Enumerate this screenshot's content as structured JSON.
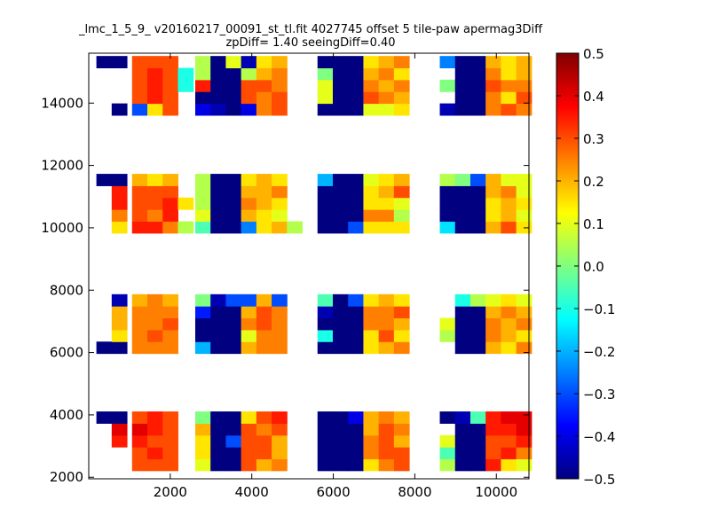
{
  "chart_data": {
    "type": "heatmap",
    "title": "_lmc_1_5_9_ v20160217_00091_st_tl.fit 4027745 offset 5 tile-paw apermag3Diff",
    "subtitle": "zpDiff= 1.40 seeingDiff=0.40",
    "xlabel": "",
    "ylabel": "",
    "xlim": [
      0,
      10800
    ],
    "ylim": [
      1950,
      15600
    ],
    "cell_width": 375,
    "cell_height": 380,
    "x_ticks": [
      2000,
      4000,
      6000,
      8000,
      10000
    ],
    "x_tick_labels": [
      "2000",
      "4000",
      "6000",
      "8000",
      "10000"
    ],
    "y_ticks": [
      2000,
      4000,
      6000,
      8000,
      10000,
      12000,
      14000
    ],
    "y_tick_labels": [
      "2000",
      "4000",
      "6000",
      "8000",
      "10000",
      "12000",
      "14000"
    ],
    "colorbar": {
      "colormap": "jet",
      "vmin": -0.5,
      "vmax": 0.5,
      "ticks": [
        -0.5,
        -0.4,
        -0.3,
        -0.2,
        -0.1,
        0.0,
        0.1,
        0.2,
        0.3,
        0.4,
        0.5
      ],
      "tick_labels": [
        "−0.5",
        "−0.4",
        "−0.3",
        "−0.2",
        "−0.1",
        "0.0",
        "0.1",
        "0.2",
        "0.3",
        "0.4",
        "0.5"
      ]
    },
    "x_centers": [
      375,
      750,
      1250,
      1625,
      2000,
      2375,
      2800,
      3175,
      3550,
      3925,
      4300,
      4675,
      5050,
      5800,
      6175,
      6550,
      6925,
      7300,
      7675,
      8050,
      8800,
      9175,
      9550,
      9925,
      10300,
      10675
    ],
    "y_centers": [
      2400,
      2780,
      3160,
      3540,
      3920,
      6160,
      6540,
      6920,
      7300,
      7680,
      10020,
      10400,
      10780,
      11160,
      11540,
      13800,
      14180,
      14560,
      14940,
      15320
    ],
    "values": [
      [
        null,
        null,
        0.3,
        0.3,
        0.3,
        null,
        0.1,
        -0.5,
        -0.5,
        0.3,
        0.2,
        0.25,
        null,
        -0.5,
        -0.5,
        -0.5,
        0.15,
        0.25,
        0.3,
        null,
        0.05,
        -0.5,
        -0.5,
        0.35,
        0.15,
        0.1
      ],
      [
        null,
        null,
        0.3,
        0.35,
        0.3,
        null,
        0.15,
        -0.5,
        -0.5,
        0.3,
        0.3,
        0.2,
        null,
        -0.5,
        -0.5,
        -0.5,
        0.25,
        0.3,
        0.3,
        null,
        -0.05,
        -0.5,
        -0.5,
        0.3,
        0.35,
        0.25
      ],
      [
        null,
        0.35,
        0.35,
        0.3,
        0.3,
        null,
        0.15,
        -0.5,
        -0.3,
        0.3,
        0.3,
        0.2,
        null,
        -0.5,
        -0.5,
        -0.5,
        0.25,
        0.3,
        0.2,
        null,
        0.1,
        -0.5,
        -0.5,
        0.3,
        0.3,
        0.35
      ],
      [
        null,
        0.4,
        0.4,
        0.35,
        0.3,
        null,
        0.2,
        -0.5,
        -0.5,
        0.3,
        0.25,
        0.3,
        null,
        -0.5,
        -0.5,
        -0.5,
        0.2,
        0.3,
        0.25,
        null,
        null,
        -0.5,
        -0.5,
        0.35,
        0.35,
        0.4
      ],
      [
        -0.5,
        -0.5,
        0.3,
        0.35,
        0.3,
        null,
        0.0,
        -0.5,
        -0.5,
        0.15,
        0.3,
        0.35,
        null,
        -0.5,
        -0.5,
        -0.4,
        0.2,
        0.25,
        0.2,
        null,
        -0.5,
        -0.45,
        -0.05,
        0.35,
        0.4,
        0.4
      ],
      [
        -0.5,
        -0.5,
        0.25,
        0.25,
        0.25,
        null,
        -0.2,
        -0.5,
        -0.5,
        0.2,
        0.25,
        0.25,
        null,
        -0.5,
        -0.5,
        -0.5,
        0.15,
        0.2,
        0.25,
        null,
        null,
        -0.5,
        -0.5,
        0.2,
        0.15,
        0.25
      ],
      [
        null,
        0.15,
        0.25,
        0.3,
        0.25,
        null,
        -0.5,
        -0.5,
        -0.5,
        0.1,
        0.25,
        0.25,
        null,
        -0.1,
        -0.5,
        -0.5,
        0.15,
        0.3,
        0.15,
        null,
        0.05,
        -0.5,
        -0.5,
        0.25,
        0.2,
        0.15
      ],
      [
        null,
        0.2,
        0.25,
        0.25,
        0.3,
        null,
        -0.5,
        -0.5,
        -0.5,
        0.25,
        0.3,
        0.25,
        null,
        -0.5,
        -0.5,
        -0.5,
        0.25,
        0.25,
        0.2,
        null,
        0.1,
        -0.5,
        -0.5,
        0.25,
        0.2,
        0.25
      ],
      [
        null,
        0.2,
        0.25,
        0.25,
        0.25,
        null,
        -0.35,
        -0.5,
        -0.5,
        0.2,
        0.3,
        0.25,
        null,
        -0.45,
        -0.5,
        -0.5,
        0.25,
        0.25,
        0.3,
        null,
        null,
        -0.5,
        -0.5,
        0.2,
        0.25,
        0.2
      ],
      [
        null,
        -0.45,
        0.2,
        0.25,
        0.2,
        null,
        0.0,
        -0.45,
        -0.3,
        -0.3,
        0.2,
        -0.3,
        null,
        -0.05,
        -0.5,
        -0.3,
        0.15,
        0.2,
        0.15,
        null,
        null,
        -0.1,
        0.05,
        0.1,
        0.15,
        0.1
      ],
      [
        null,
        0.15,
        0.35,
        0.35,
        0.25,
        0.05,
        -0.05,
        -0.5,
        -0.5,
        -0.25,
        0.15,
        0.2,
        0.05,
        -0.5,
        -0.5,
        -0.3,
        0.15,
        0.15,
        0.15,
        null,
        -0.15,
        -0.5,
        -0.5,
        0.2,
        0.3,
        0.15
      ],
      [
        null,
        0.25,
        0.3,
        0.25,
        0.35,
        null,
        0.1,
        -0.5,
        -0.5,
        0.2,
        0.15,
        0.1,
        null,
        -0.5,
        -0.5,
        -0.5,
        0.25,
        0.25,
        0.05,
        null,
        -0.5,
        -0.5,
        -0.5,
        0.15,
        0.2,
        0.1
      ],
      [
        null,
        0.35,
        0.3,
        0.3,
        0.35,
        0.15,
        0.05,
        -0.5,
        -0.5,
        0.25,
        0.2,
        0.15,
        null,
        -0.5,
        -0.5,
        -0.5,
        0.15,
        0.15,
        0.1,
        null,
        -0.5,
        -0.5,
        -0.5,
        0.15,
        0.2,
        0.15
      ],
      [
        null,
        0.35,
        0.3,
        0.3,
        0.3,
        null,
        0.05,
        -0.5,
        -0.5,
        0.2,
        0.2,
        0.25,
        null,
        -0.5,
        -0.5,
        -0.5,
        0.15,
        0.2,
        0.3,
        null,
        -0.5,
        -0.5,
        -0.5,
        0.2,
        0.25,
        0.1
      ],
      [
        -0.5,
        -0.5,
        0.2,
        0.15,
        0.2,
        null,
        0.05,
        -0.5,
        -0.5,
        0.15,
        0.2,
        0.15,
        null,
        -0.2,
        -0.5,
        -0.5,
        0.1,
        0.15,
        0.2,
        null,
        0.05,
        0.0,
        -0.3,
        0.2,
        0.1,
        0.1
      ],
      [
        null,
        -0.5,
        -0.3,
        0.15,
        0.3,
        null,
        -0.4,
        -0.45,
        -0.5,
        -0.4,
        0.25,
        0.3,
        null,
        -0.5,
        -0.5,
        -0.5,
        0.1,
        0.1,
        0.15,
        null,
        -0.45,
        -0.5,
        -0.5,
        0.25,
        0.3,
        0.25
      ],
      [
        null,
        null,
        0.3,
        0.35,
        0.3,
        null,
        -0.5,
        -0.5,
        -0.5,
        0.3,
        0.25,
        0.3,
        null,
        0.1,
        -0.5,
        -0.5,
        0.3,
        0.25,
        0.2,
        null,
        null,
        -0.5,
        -0.5,
        0.25,
        0.15,
        0.3
      ],
      [
        null,
        null,
        0.3,
        0.35,
        0.3,
        -0.1,
        0.35,
        -0.5,
        -0.5,
        0.3,
        0.3,
        0.25,
        null,
        0.1,
        -0.5,
        -0.5,
        0.25,
        0.2,
        0.25,
        null,
        0.0,
        -0.5,
        -0.5,
        0.3,
        0.25,
        0.25
      ],
      [
        null,
        null,
        0.3,
        0.35,
        0.3,
        -0.1,
        0.05,
        -0.5,
        -0.5,
        0.05,
        0.2,
        0.25,
        null,
        0.0,
        -0.5,
        -0.5,
        0.2,
        0.25,
        0.15,
        null,
        null,
        -0.5,
        -0.5,
        0.25,
        0.15,
        0.2
      ],
      [
        -0.5,
        -0.5,
        0.3,
        0.3,
        0.3,
        null,
        0.05,
        -0.5,
        0.1,
        -0.45,
        0.15,
        0.2,
        null,
        -0.5,
        -0.5,
        -0.5,
        0.15,
        0.2,
        0.25,
        null,
        -0.25,
        -0.5,
        -0.5,
        0.2,
        0.15,
        0.2
      ]
    ]
  }
}
